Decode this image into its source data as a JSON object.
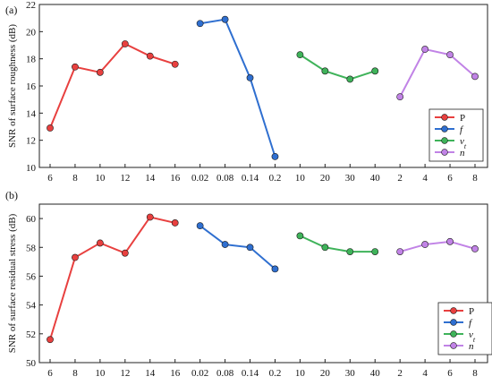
{
  "chart_data": [
    {
      "panel_label": "(a)",
      "type": "line",
      "ylabel": "SNR of surface roughness (dB)",
      "ylim": [
        10,
        22
      ],
      "yticks": [
        10,
        12,
        14,
        16,
        18,
        20,
        22
      ],
      "x_tick_labels": [
        "6",
        "8",
        "10",
        "12",
        "14",
        "16",
        "0.02",
        "0.08",
        "0.14",
        "0.2",
        "10",
        "20",
        "30",
        "40",
        "2",
        "4",
        "6",
        "8"
      ],
      "series": [
        {
          "name": "P",
          "color": "#e8403f",
          "values": [
            12.9,
            17.4,
            17.0,
            19.1,
            18.2,
            17.6
          ]
        },
        {
          "name": "f",
          "color": "#2f6fd0",
          "values": [
            20.6,
            20.9,
            16.6,
            10.8
          ]
        },
        {
          "name": "vt",
          "color": "#3fb35a",
          "values": [
            18.3,
            17.1,
            16.5,
            17.1
          ]
        },
        {
          "name": "n",
          "color": "#c183e6",
          "values": [
            15.2,
            18.7,
            18.3,
            16.7
          ]
        }
      ],
      "legend": [
        "P",
        "f",
        "v_t",
        "n"
      ],
      "legend_position": "bottom-right"
    },
    {
      "panel_label": "(b)",
      "type": "line",
      "ylabel": "SNR of surface residual stress (dB)",
      "ylim": [
        50,
        61
      ],
      "yticks": [
        50,
        52,
        54,
        56,
        58,
        60
      ],
      "x_tick_labels": [
        "6",
        "8",
        "10",
        "12",
        "14",
        "16",
        "0.02",
        "0.08",
        "0.14",
        "0.2",
        "10",
        "20",
        "30",
        "40",
        "2",
        "4",
        "6",
        "8"
      ],
      "series": [
        {
          "name": "P",
          "color": "#e8403f",
          "values": [
            51.6,
            57.3,
            58.3,
            57.6,
            60.1,
            59.7
          ]
        },
        {
          "name": "f",
          "color": "#2f6fd0",
          "values": [
            59.5,
            58.2,
            58.0,
            56.5
          ]
        },
        {
          "name": "vt",
          "color": "#3fb35a",
          "values": [
            58.8,
            58.0,
            57.7,
            57.7
          ]
        },
        {
          "name": "n",
          "color": "#c183e6",
          "values": [
            57.7,
            58.2,
            58.4,
            57.9
          ]
        }
      ],
      "legend": [
        "P",
        "f",
        "v_t",
        "n"
      ],
      "legend_position": "bottom-right"
    }
  ]
}
